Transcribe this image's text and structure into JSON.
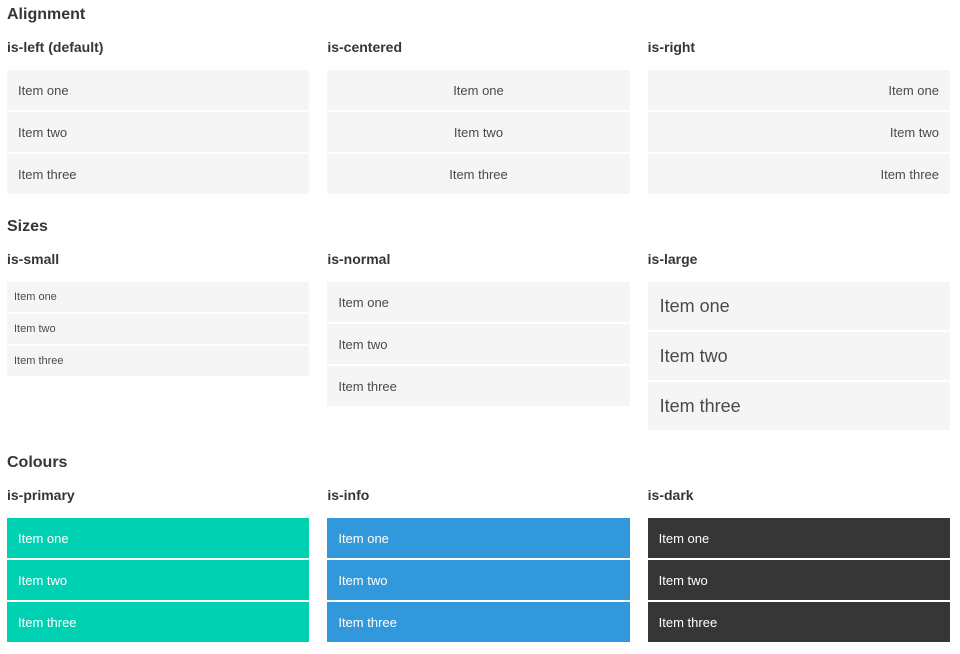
{
  "colors": {
    "primary": "#00d1b2",
    "info": "#3298dc",
    "dark": "#363636",
    "item_bg": "#f5f5f5",
    "item_text": "#4a4a4a",
    "item_text_on_color": "#ffffff",
    "heading_text": "#363636"
  },
  "sections": [
    {
      "title": "Alignment",
      "columns": [
        {
          "heading": "is-left (default)",
          "items": [
            "Item one",
            "Item two",
            "Item three"
          ]
        },
        {
          "heading": "is-centered",
          "items": [
            "Item one",
            "Item two",
            "Item three"
          ]
        },
        {
          "heading": "is-right",
          "items": [
            "Item one",
            "Item two",
            "Item three"
          ]
        }
      ]
    },
    {
      "title": "Sizes",
      "columns": [
        {
          "heading": "is-small",
          "items": [
            "Item one",
            "Item two",
            "Item three"
          ]
        },
        {
          "heading": "is-normal",
          "items": [
            "Item one",
            "Item two",
            "Item three"
          ]
        },
        {
          "heading": "is-large",
          "items": [
            "Item one",
            "Item two",
            "Item three"
          ]
        }
      ]
    },
    {
      "title": "Colours",
      "columns": [
        {
          "heading": "is-primary",
          "items": [
            "Item one",
            "Item two",
            "Item three"
          ]
        },
        {
          "heading": "is-info",
          "items": [
            "Item one",
            "Item two",
            "Item three"
          ]
        },
        {
          "heading": "is-dark",
          "items": [
            "Item one",
            "Item two",
            "Item three"
          ]
        }
      ]
    }
  ]
}
